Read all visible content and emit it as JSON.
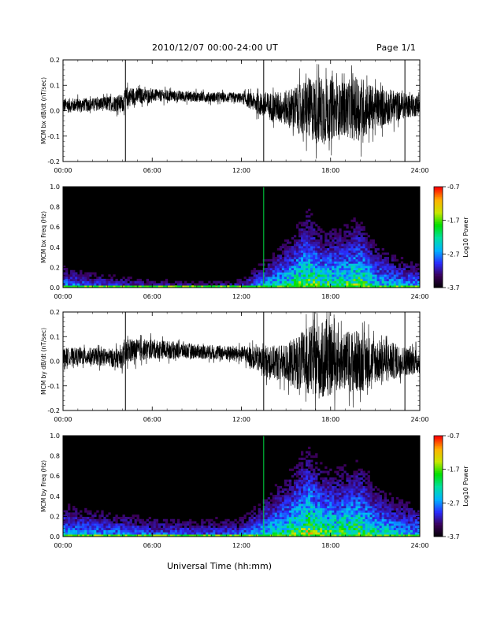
{
  "header": {
    "title": "2010/12/07  00:00-24:00 UT",
    "page": "Page 1/1"
  },
  "xaxis": {
    "title": "Universal Time (hh:mm)",
    "ticks": [
      "00:00",
      "06:00",
      "12:00",
      "18:00",
      "24:00"
    ],
    "range_hours": [
      0,
      24
    ]
  },
  "colorbar": {
    "label": "Log10 Power",
    "ticks": [
      "-0.7",
      "-1.7",
      "-2.7",
      "-3.7"
    ],
    "range": [
      -3.7,
      -0.7
    ],
    "colors": [
      "#000000",
      "#3a0058",
      "#2a2dff",
      "#00b4ff",
      "#00e0a0",
      "#00e000",
      "#c8e600",
      "#ffb000",
      "#ff0000"
    ]
  },
  "chart_data": [
    {
      "type": "line",
      "ylabel": "MCM bx dB/dt (nT/sec)",
      "ylim": [
        -0.2,
        0.2
      ],
      "yticks": [
        "0.2",
        "0.1",
        "0.0",
        "-0.1",
        "-0.2"
      ],
      "line_color": "#000000",
      "envelope": {
        "x_hours": [
          0,
          2,
          4,
          4.3,
          6,
          9,
          12,
          13.5,
          15,
          16.5,
          17.5,
          18.5,
          20,
          21,
          22,
          23,
          24
        ],
        "center": [
          0.02,
          0.025,
          0.03,
          0.055,
          0.06,
          0.055,
          0.05,
          0.02,
          0.01,
          0.005,
          0.0,
          0.005,
          0.01,
          0.01,
          0.015,
          0.02,
          0.02
        ],
        "amplitude": [
          0.03,
          0.025,
          0.035,
          0.04,
          0.025,
          0.02,
          0.02,
          0.05,
          0.07,
          0.12,
          0.14,
          0.1,
          0.13,
          0.08,
          0.07,
          0.05,
          0.04
        ]
      },
      "spikes_hours": [
        4.2,
        13.5,
        23.0
      ],
      "spike_range": [
        -0.2,
        0.2
      ]
    },
    {
      "type": "heatmap",
      "ylabel": "MCM bx Freq (Hz)",
      "ylim": [
        0.0,
        1.0
      ],
      "yticks": [
        "1.0",
        "0.8",
        "0.6",
        "0.4",
        "0.2",
        "0.0"
      ],
      "activity": {
        "x_hours": [
          0,
          3,
          6,
          9,
          12,
          13.5,
          15,
          16.5,
          17.5,
          18.5,
          20,
          21,
          22.5,
          24
        ],
        "max_freq": [
          0.25,
          0.18,
          0.15,
          0.12,
          0.15,
          0.3,
          0.45,
          0.65,
          0.5,
          0.55,
          0.6,
          0.45,
          0.35,
          0.3
        ],
        "intensity": [
          0.45,
          0.35,
          0.3,
          0.25,
          0.3,
          0.5,
          0.65,
          0.85,
          0.75,
          0.7,
          0.8,
          0.6,
          0.5,
          0.45
        ]
      },
      "vertical_line_hours": 13.5
    },
    {
      "type": "line",
      "ylabel": "MCM by dB/dt (nT/sec)",
      "ylim": [
        -0.2,
        0.2
      ],
      "yticks": [
        "0.2",
        "0.1",
        "0.0",
        "-0.1",
        "-0.2"
      ],
      "line_color": "#000000",
      "envelope": {
        "x_hours": [
          0,
          2,
          4,
          4.3,
          6,
          9,
          12,
          13.5,
          15,
          16.5,
          17.5,
          18.5,
          20,
          21,
          22,
          23,
          24
        ],
        "center": [
          0.02,
          0.02,
          0.01,
          0.04,
          0.05,
          0.04,
          0.03,
          0.0,
          -0.01,
          0.0,
          0.0,
          0.0,
          0.0,
          0.0,
          0.0,
          0.0,
          0.0
        ],
        "amplitude": [
          0.035,
          0.035,
          0.04,
          0.05,
          0.04,
          0.03,
          0.03,
          0.06,
          0.08,
          0.14,
          0.16,
          0.12,
          0.13,
          0.09,
          0.08,
          0.06,
          0.05
        ]
      },
      "spikes_hours": [
        4.2,
        13.5,
        23.0
      ],
      "spike_range": [
        -0.2,
        0.2
      ]
    },
    {
      "type": "heatmap",
      "ylabel": "MCM by Freq (Hz)",
      "ylim": [
        0.0,
        1.0
      ],
      "yticks": [
        "1.0",
        "0.8",
        "0.6",
        "0.4",
        "0.2",
        "0.0"
      ],
      "activity": {
        "x_hours": [
          0,
          3,
          6,
          9,
          12,
          13.5,
          15,
          16.5,
          17.5,
          18.5,
          20,
          21,
          22.5,
          24
        ],
        "max_freq": [
          0.35,
          0.3,
          0.25,
          0.25,
          0.25,
          0.4,
          0.55,
          0.75,
          0.6,
          0.6,
          0.65,
          0.5,
          0.4,
          0.35
        ],
        "intensity": [
          0.5,
          0.45,
          0.4,
          0.35,
          0.4,
          0.55,
          0.7,
          0.9,
          0.8,
          0.75,
          0.8,
          0.65,
          0.55,
          0.5
        ]
      },
      "vertical_line_hours": 13.5
    }
  ]
}
